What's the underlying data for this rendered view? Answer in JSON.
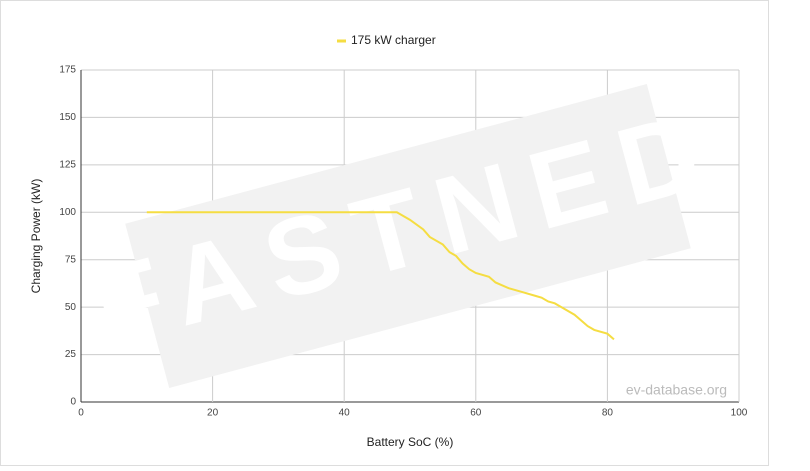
{
  "chart_data": {
    "type": "line",
    "x_label": "Battery SoC (%)",
    "y_label": "Charging Power (kW)",
    "watermark": "FASTNED",
    "source": "ev-database.org",
    "xlim": [
      0,
      100
    ],
    "xticks": [
      0,
      20,
      40,
      60,
      80,
      100
    ],
    "ylim": [
      0,
      175
    ],
    "yticks": [
      0,
      25,
      50,
      75,
      100,
      125,
      150,
      175
    ],
    "grid": true,
    "legend": "top",
    "x": [
      10,
      48,
      50,
      52,
      53,
      55,
      56,
      57,
      58,
      59,
      60,
      62,
      63,
      65,
      67,
      69,
      70,
      71,
      72,
      73,
      75,
      76,
      77,
      78,
      80,
      81
    ],
    "series": [
      {
        "name": "175 kW charger",
        "color": "#f5dd42",
        "values": [
          100,
          100,
          96,
          91,
          87,
          83,
          79,
          77,
          73,
          70,
          68,
          66,
          63,
          60,
          58,
          56,
          55,
          53,
          52,
          50,
          46,
          43,
          40,
          38,
          36,
          33
        ]
      }
    ]
  }
}
